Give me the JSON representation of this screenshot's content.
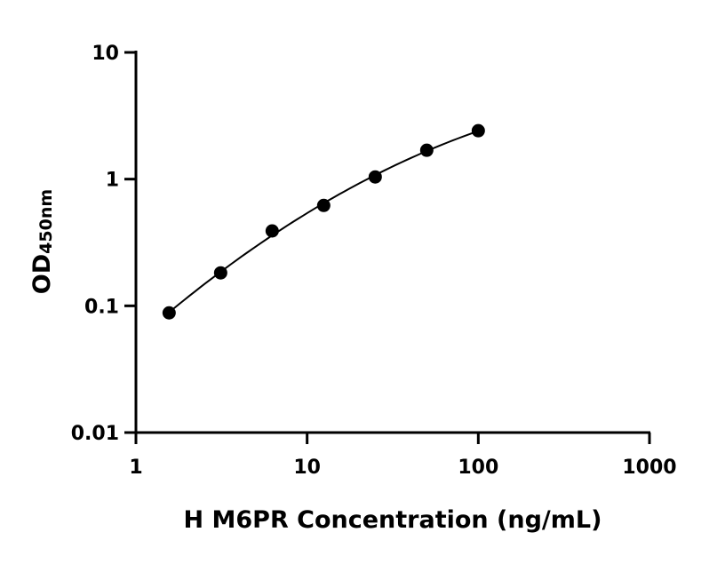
{
  "chart_data": {
    "type": "scatter",
    "title": "",
    "xlabel": "H M6PR Concentration (ng/mL)",
    "ylabel": "OD",
    "ylabel_sub": "450nm",
    "xscale": "log",
    "yscale": "log",
    "xlim": [
      1,
      1000
    ],
    "ylim": [
      0.01,
      10
    ],
    "xticks": [
      1,
      10,
      100,
      1000
    ],
    "xtick_labels": [
      "1",
      "10",
      "100",
      "1000"
    ],
    "yticks": [
      0.01,
      0.1,
      1,
      10
    ],
    "ytick_labels": [
      "0.01",
      "0.1",
      "1",
      "10"
    ],
    "grid": false,
    "points": {
      "x": [
        1.5625,
        3.125,
        6.25,
        12.5,
        25,
        50,
        100
      ],
      "y": [
        0.088,
        0.182,
        0.39,
        0.62,
        1.04,
        1.69,
        2.41
      ]
    },
    "fit_curve": true,
    "colors": {
      "points": "#000000",
      "curve": "#000000"
    }
  }
}
